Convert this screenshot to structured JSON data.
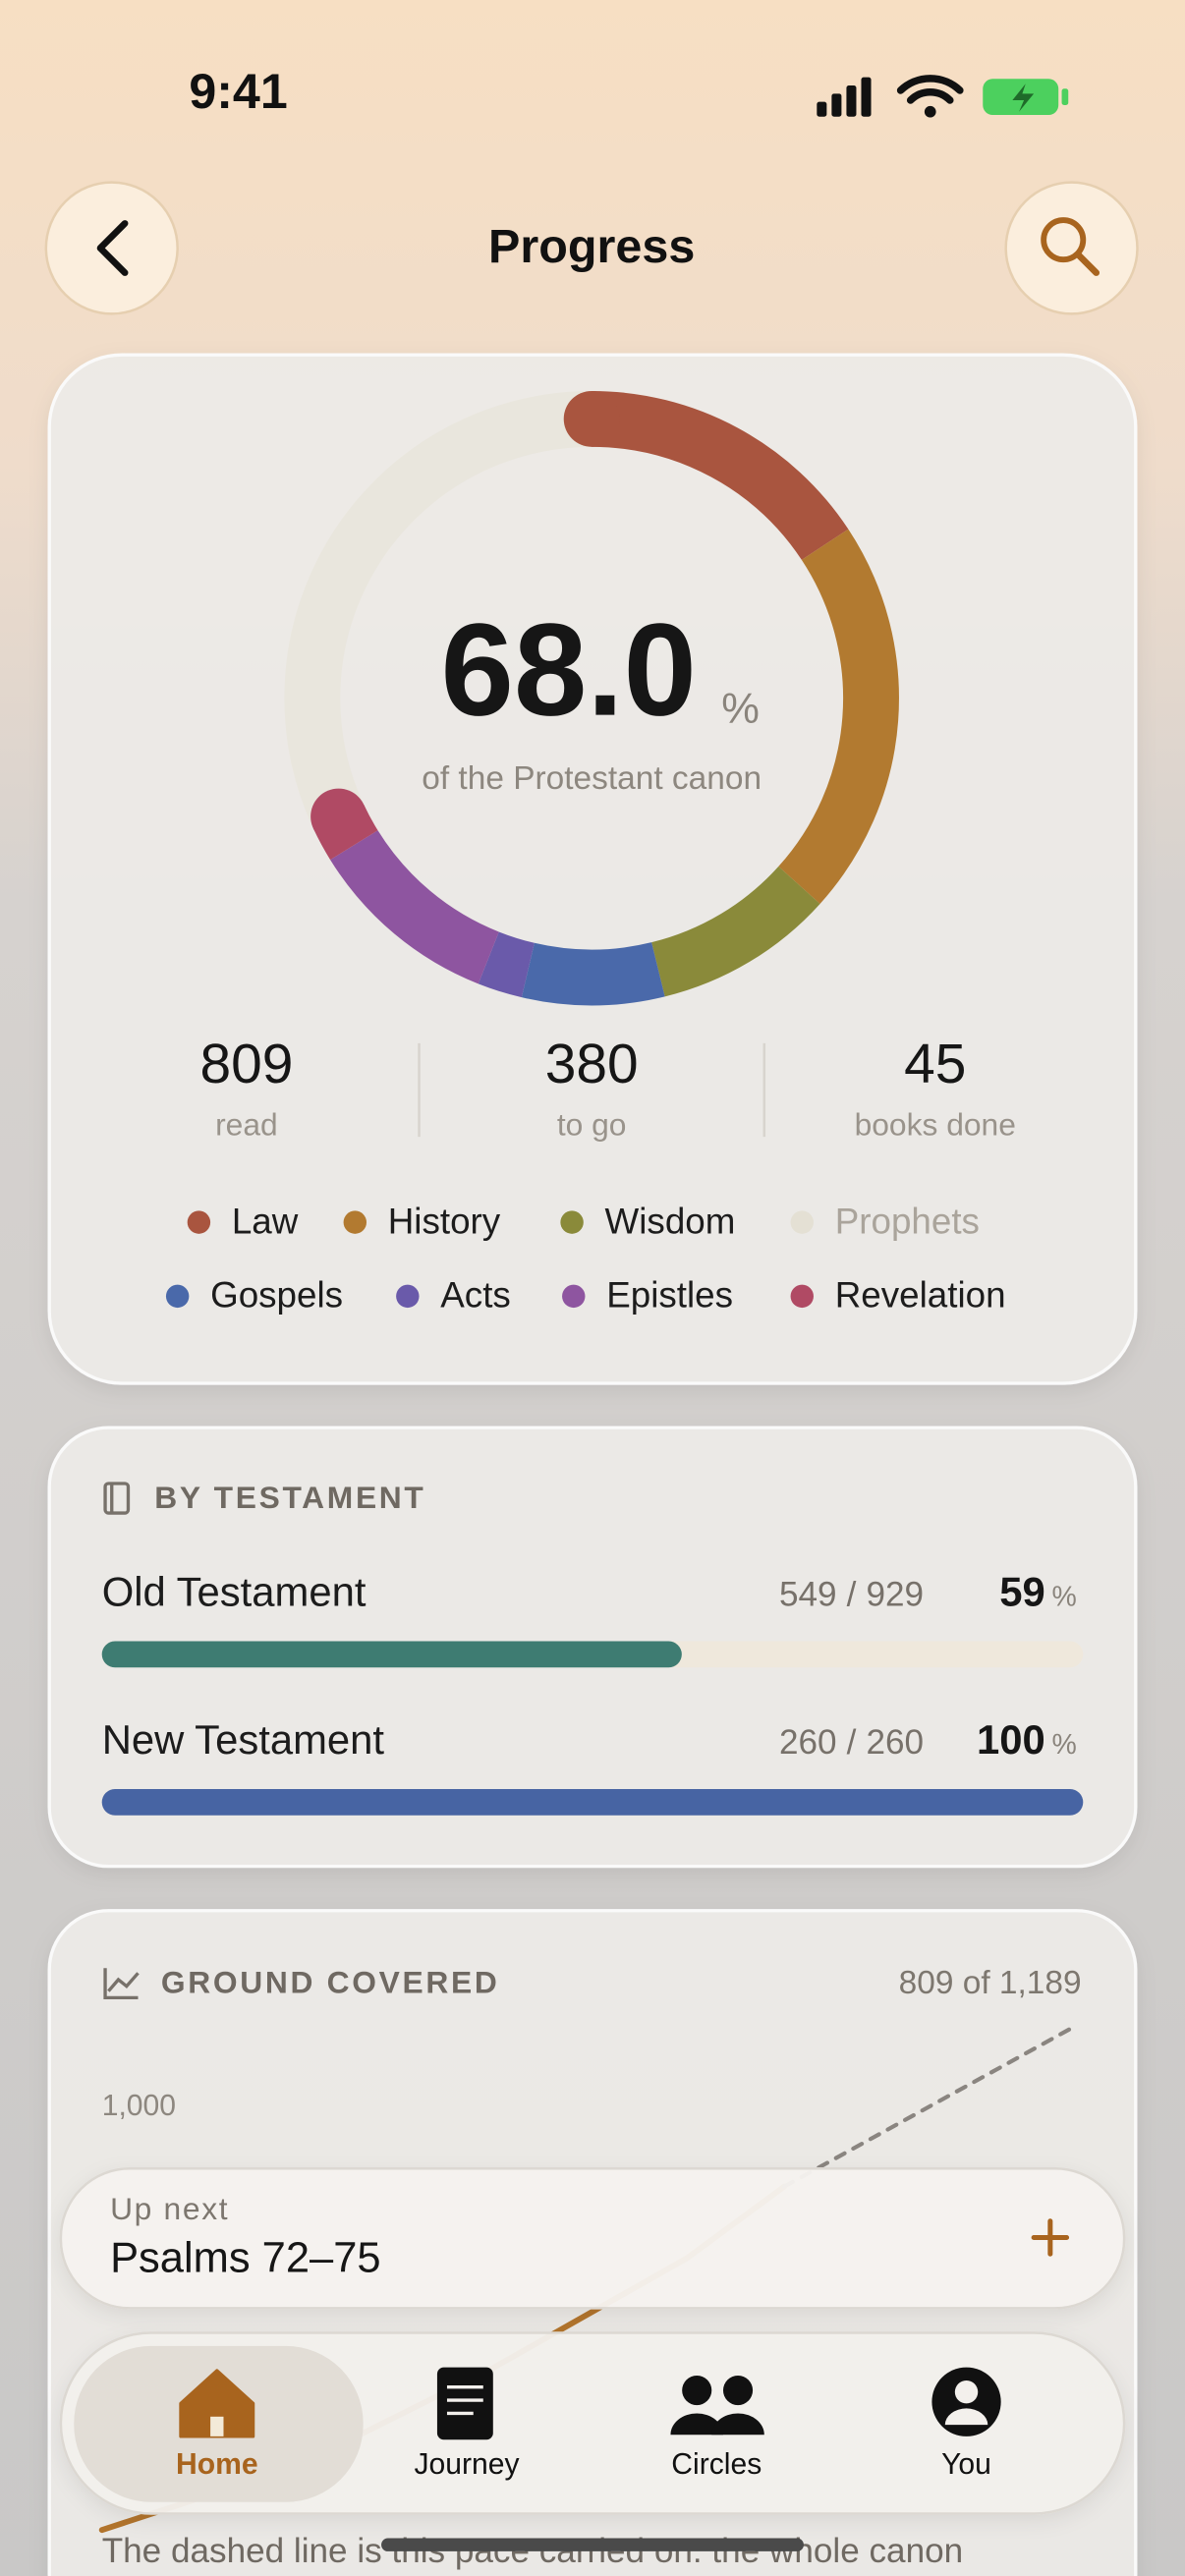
{
  "status_bar": {
    "time": "9:41"
  },
  "header": {
    "title": "Progress"
  },
  "summary": {
    "percent": {
      "value": 68,
      "label": "68.0"
    },
    "percent_unit": "%",
    "caption": "of the Protestant canon",
    "stats": [
      {
        "value": 809,
        "label": "read"
      },
      {
        "value": 380,
        "label": "to go"
      },
      {
        "value": 45,
        "label": "books done"
      }
    ]
  },
  "chart_data": [
    {
      "type": "donut",
      "categories": [
        "Law",
        "History",
        "Wisdom",
        "Prophets",
        "Gospels",
        "Acts",
        "Epistles",
        "Revelation"
      ],
      "colors": [
        "#a9553f",
        "#b27a30",
        "#8a8a3a",
        "#e4e0d4",
        "#4a69aa",
        "#6a5aaa",
        "#8e55a0",
        "#b04a64"
      ],
      "values": [
        187,
        249,
        113,
        0,
        89,
        28,
        121,
        22
      ],
      "total": 1189
    },
    {
      "type": "line",
      "title": "GROUND COVERED",
      "subtitle": "809 of 1,189",
      "xlim": [
        0,
        100
      ],
      "ylim": [
        0,
        1200
      ],
      "yticks": [
        {
          "value": 1000,
          "label": "1,000"
        }
      ],
      "series": [
        {
          "color": "#b2742c",
          "x": [
            0,
            20,
            40,
            60,
            70
          ],
          "values": [
            0,
            150,
            380,
            640,
            809
          ]
        },
        {
          "color": "#8a8580",
          "dashed": true,
          "x": [
            70,
            100
          ],
          "values": [
            809,
            1189
          ]
        }
      ],
      "note": "The dashed line is this pace carried on: the whole canon"
    }
  ],
  "testament": {
    "title": "BY TESTAMENT",
    "separator": "/",
    "unit": "%",
    "rows": [
      {
        "name": "Old Testament",
        "read": 549,
        "total": 929,
        "percent": 59,
        "color": "#3e7c72"
      },
      {
        "name": "New Testament",
        "read": 260,
        "total": 260,
        "percent": 100,
        "color": "#4764a3"
      }
    ]
  },
  "up_next": {
    "label": "Up next",
    "title": "Psalms 72–75"
  },
  "tabs": [
    {
      "label": "Home",
      "active": true
    },
    {
      "label": "Journey",
      "active": false
    },
    {
      "label": "Circles",
      "active": false
    },
    {
      "label": "You",
      "active": false
    }
  ]
}
